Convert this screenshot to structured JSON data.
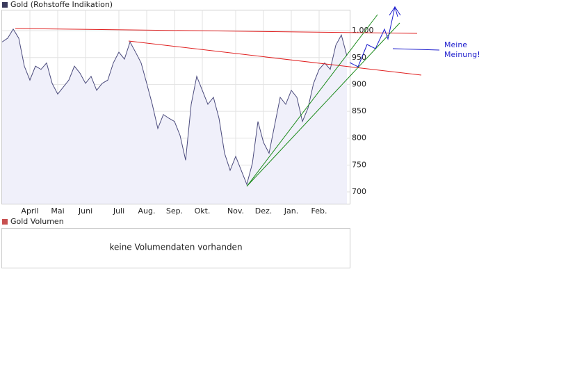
{
  "chart_data": {
    "type": "line",
    "categories": [
      null,
      null,
      null,
      null,
      null,
      "April",
      null,
      null,
      null,
      null,
      "Mai",
      null,
      null,
      null,
      null,
      "Juni",
      null,
      null,
      null,
      null,
      null,
      "Juli",
      null,
      null,
      null,
      null,
      "Aug.",
      null,
      null,
      null,
      null,
      "Sep.",
      null,
      null,
      null,
      null,
      "Okt.",
      null,
      null,
      null,
      null,
      null,
      "Nov.",
      null,
      null,
      null,
      null,
      "Dez.",
      null,
      null,
      null,
      null,
      "Jan.",
      null,
      null,
      null,
      null,
      "Feb.",
      null,
      null,
      null,
      null,
      null
    ],
    "series": [
      {
        "name": "Gold (Rohstoffe Indikation)",
        "color": "#4a4a7c",
        "fill": "#f0f0fa",
        "values": [
          979,
          986,
          1003,
          986,
          934,
          908,
          934,
          928,
          940,
          902,
          882,
          895,
          908,
          934,
          921,
          902,
          915,
          889,
          902,
          908,
          940,
          960,
          947,
          979,
          960,
          940,
          902,
          863,
          818,
          844,
          837,
          831,
          805,
          759,
          863,
          915,
          889,
          863,
          876,
          837,
          772,
          740,
          766,
          740,
          714,
          753,
          831,
          792,
          772,
          824,
          876,
          863,
          889,
          876,
          831,
          856,
          902,
          928,
          940,
          928,
          973,
          992,
          953
        ]
      }
    ],
    "ylim": [
      678,
      1039
    ],
    "yticks": [
      700,
      750,
      800,
      850,
      900,
      950,
      {
        "value": 1000,
        "label": "1.000"
      }
    ],
    "grid": true
  },
  "volume_panel": {
    "title": "Gold Volumen",
    "message": "keine Volumendaten vorhanden"
  },
  "annotation": "Meine Meinung!"
}
